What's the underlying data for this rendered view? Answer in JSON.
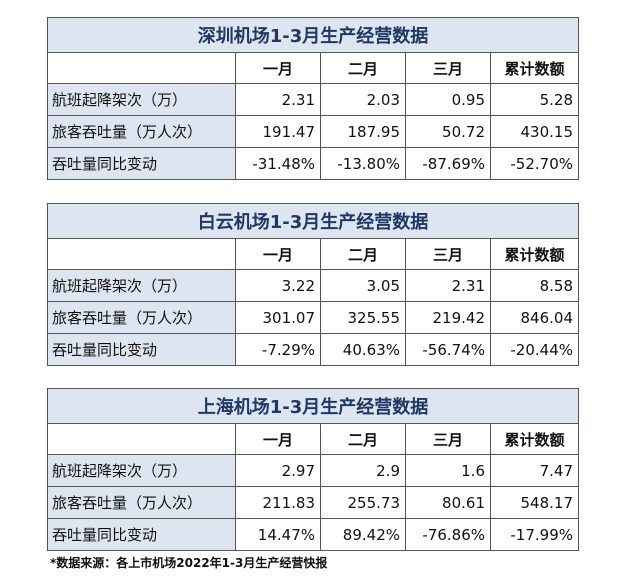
{
  "tables": [
    {
      "title": "深圳机场1-3月生产经营数据",
      "columns": [
        "一月",
        "二月",
        "三月",
        "累计数额"
      ],
      "rows": [
        [
          "航班起降架次（万）",
          "2.31",
          "2.03",
          "0.95",
          "5.28"
        ],
        [
          "旅客吞吐量（万人次）",
          "191.47",
          "187.95",
          "50.72",
          "430.15"
        ],
        [
          "吞吐量同比变动",
          "-31.48%",
          "-13.80%",
          "-87.69%",
          "-52.70%"
        ]
      ]
    },
    {
      "title": "白云机场1-3月生产经营数据",
      "columns": [
        "一月",
        "二月",
        "三月",
        "累计数额"
      ],
      "rows": [
        [
          "航班起降架次（万）",
          "3.22",
          "3.05",
          "2.31",
          "8.58"
        ],
        [
          "旅客吞吐量（万人次）",
          "301.07",
          "325.55",
          "219.42",
          "846.04"
        ],
        [
          "吞吐量同比变动",
          "-7.29%",
          "40.63%",
          "-56.74%",
          "-20.44%"
        ]
      ]
    },
    {
      "title": "上海机场1-3月生产经营数据",
      "columns": [
        "一月",
        "二月",
        "三月",
        "累计数额"
      ],
      "rows": [
        [
          "航班起降架次（万）",
          "2.97",
          "2.9",
          "1.6",
          "7.47"
        ],
        [
          "旅客吞吐量（万人次）",
          "211.83",
          "255.73",
          "80.61",
          "548.17"
        ],
        [
          "吞吐量同比变动",
          "14.47%",
          "89.42%",
          "-76.86%",
          "-17.99%"
        ]
      ]
    }
  ],
  "footnote": "*数据来源：各上市机场2022年1-3月生产经营快报"
}
